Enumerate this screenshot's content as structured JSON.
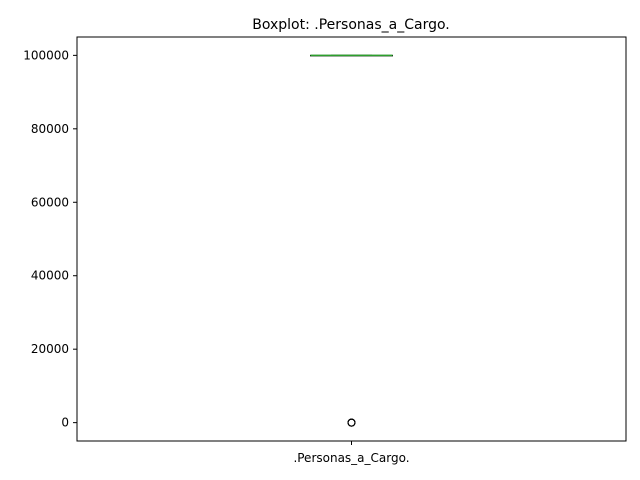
{
  "chart_data": {
    "type": "box",
    "title": "Boxplot: .Personas_a_Cargo.",
    "xlabel": "",
    "ylabel": "",
    "categories": [
      ".Personas_a_Cargo."
    ],
    "ylim": [
      -5000,
      105000
    ],
    "yticks": [
      0,
      20000,
      40000,
      60000,
      80000,
      100000
    ],
    "grid": false,
    "boxes": [
      {
        "name": ".Personas_a_Cargo.",
        "q1": 99999,
        "median": 99999,
        "q3": 99999,
        "whisker_low": 99999,
        "whisker_high": 99999,
        "outliers": [
          0,
          1,
          2,
          3
        ]
      }
    ],
    "colors": {
      "median": "#2ca02c",
      "box": "#000000",
      "outlier": "#000000"
    }
  }
}
